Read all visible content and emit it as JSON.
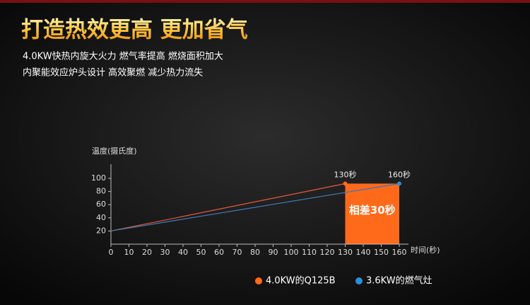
{
  "header": {
    "title": "打造热效更高 更加省气",
    "lines": [
      "4.0KW快热内旋大火力 燃气率提高 燃烧面积加大",
      "内聚能效应炉头设计 高效聚燃 减少热力流失"
    ]
  },
  "chart_data": {
    "type": "line",
    "y_label": "温度(摄氏度)",
    "x_label": "时间(秒)",
    "xlim": [
      0,
      160
    ],
    "xticks": [
      0,
      10,
      20,
      30,
      40,
      50,
      60,
      70,
      80,
      90,
      100,
      110,
      120,
      130,
      140,
      150,
      160
    ],
    "ylim": [
      0,
      110
    ],
    "yticks": [
      20,
      40,
      60,
      80,
      100
    ],
    "series": [
      {
        "name": "4.0KW的Q125B",
        "color": "#ff6a1a",
        "line_color": "#d9533a",
        "x": [
          0,
          130
        ],
        "values": [
          20,
          92
        ]
      },
      {
        "name": "3.6KW的燃气灶",
        "color": "#2b8fdc",
        "line_color": "#3f78b2",
        "x": [
          0,
          160
        ],
        "values": [
          20,
          92
        ]
      }
    ],
    "annotations": [
      "130秒",
      "160秒"
    ],
    "highlight": {
      "label": "相差30秒",
      "color": "#ff6a1a"
    }
  }
}
